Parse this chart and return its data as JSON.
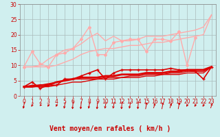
{
  "title": "",
  "xlabel": "Vent moyen/en rafales ( km/h )",
  "xlabel_color": "#cc0000",
  "background_color": "#d0efef",
  "grid_color": "#aabbbb",
  "xlim": [
    -0.5,
    23.5
  ],
  "ylim": [
    0,
    30
  ],
  "xticks": [
    0,
    1,
    2,
    3,
    4,
    5,
    6,
    7,
    8,
    9,
    10,
    11,
    12,
    13,
    14,
    15,
    16,
    17,
    18,
    19,
    20,
    21,
    22,
    23
  ],
  "yticks": [
    0,
    5,
    10,
    15,
    20,
    25,
    30
  ],
  "lines": [
    {
      "x": [
        0,
        1,
        2,
        3,
        4,
        5,
        6,
        7,
        8,
        9,
        10,
        11,
        12,
        13,
        14,
        15,
        16,
        17,
        18,
        19,
        20,
        21
      ],
      "y": [
        9.5,
        14.5,
        10.5,
        9.5,
        13.5,
        14.0,
        15.5,
        18.5,
        22.5,
        13.5,
        13.5,
        17.5,
        18.0,
        18.5,
        18.5,
        14.5,
        18.5,
        18.5,
        18.0,
        21.0,
        10.0,
        19.0
      ],
      "color": "#ffaaaa",
      "lw": 1.0,
      "marker": "D",
      "markersize": 2.0,
      "zorder": 2
    },
    {
      "x": [
        0,
        1,
        2,
        3,
        4,
        5,
        6,
        7,
        8,
        9,
        10,
        11,
        12,
        13,
        14,
        15,
        16,
        17,
        18,
        19,
        20,
        21,
        22,
        23
      ],
      "y": [
        9.5,
        9.5,
        10.0,
        12.0,
        13.5,
        15.0,
        15.5,
        17.0,
        19.0,
        20.5,
        18.0,
        19.5,
        18.0,
        18.0,
        18.5,
        19.5,
        19.5,
        19.5,
        20.0,
        20.5,
        21.0,
        21.5,
        22.5,
        26.5
      ],
      "color": "#ffaaaa",
      "lw": 1.0,
      "marker": null,
      "markersize": 0,
      "zorder": 2
    },
    {
      "x": [
        0,
        1,
        2,
        3,
        4,
        5,
        6,
        7,
        8,
        9,
        10,
        11,
        12,
        13,
        14,
        15,
        16,
        17,
        18,
        19,
        20,
        21,
        22,
        23
      ],
      "y": [
        9.5,
        9.5,
        9.5,
        9.5,
        10.0,
        11.0,
        12.0,
        13.5,
        14.5,
        15.0,
        15.5,
        15.5,
        16.0,
        16.5,
        16.5,
        17.0,
        17.5,
        17.5,
        18.0,
        18.5,
        19.0,
        19.5,
        20.0,
        26.5
      ],
      "color": "#ffaaaa",
      "lw": 1.0,
      "marker": null,
      "markersize": 0,
      "zorder": 2
    },
    {
      "x": [
        0,
        1,
        2,
        3,
        4,
        5,
        6,
        7,
        8,
        9,
        10,
        11,
        12,
        13,
        14,
        15,
        16,
        17,
        18,
        19,
        20,
        21,
        22,
        23
      ],
      "y": [
        3.0,
        4.5,
        2.5,
        3.5,
        3.5,
        5.5,
        5.5,
        6.5,
        7.5,
        8.5,
        5.5,
        7.5,
        8.5,
        8.5,
        8.5,
        8.5,
        8.5,
        8.5,
        9.0,
        8.5,
        8.5,
        8.0,
        5.5,
        9.5
      ],
      "color": "#dd0000",
      "lw": 1.2,
      "marker": "+",
      "markersize": 3.5,
      "zorder": 3
    },
    {
      "x": [
        0,
        1,
        2,
        3,
        4,
        5,
        6,
        7,
        8,
        9,
        10,
        11,
        12,
        13,
        14,
        15,
        16,
        17,
        18,
        19,
        20,
        21,
        22,
        23
      ],
      "y": [
        3.0,
        3.0,
        3.5,
        3.5,
        4.5,
        5.0,
        5.5,
        6.0,
        6.0,
        6.0,
        6.5,
        6.5,
        7.0,
        7.0,
        7.0,
        7.5,
        7.5,
        7.5,
        8.0,
        8.0,
        8.5,
        8.5,
        8.5,
        9.5
      ],
      "color": "#dd0000",
      "lw": 2.0,
      "marker": null,
      "markersize": 0,
      "zorder": 3
    },
    {
      "x": [
        0,
        1,
        2,
        3,
        4,
        5,
        6,
        7,
        8,
        9,
        10,
        11,
        12,
        13,
        14,
        15,
        16,
        17,
        18,
        19,
        20,
        21,
        22,
        23
      ],
      "y": [
        3.0,
        3.5,
        3.5,
        4.0,
        4.5,
        5.0,
        5.5,
        5.5,
        5.5,
        5.5,
        6.0,
        6.0,
        6.0,
        6.5,
        6.5,
        7.0,
        7.0,
        7.0,
        7.5,
        7.5,
        8.0,
        8.0,
        8.0,
        9.5
      ],
      "color": "#dd0000",
      "lw": 1.0,
      "marker": null,
      "markersize": 0,
      "zorder": 3
    },
    {
      "x": [
        0,
        1,
        2,
        3,
        4,
        5,
        6,
        7,
        8,
        9,
        10,
        11,
        12,
        13,
        14,
        15,
        16,
        17,
        18,
        19,
        20,
        21,
        22,
        23
      ],
      "y": [
        3.0,
        3.0,
        3.0,
        3.0,
        3.5,
        4.0,
        4.5,
        4.5,
        5.0,
        5.5,
        5.5,
        5.5,
        6.0,
        6.0,
        6.0,
        6.5,
        6.5,
        7.0,
        7.0,
        7.0,
        7.5,
        7.5,
        7.5,
        9.5
      ],
      "color": "#dd0000",
      "lw": 1.0,
      "marker": null,
      "markersize": 0,
      "zorder": 3
    }
  ],
  "tick_fontsize": 5.5,
  "label_fontsize": 7,
  "wind_angles": [
    210,
    240,
    250,
    240,
    240,
    210,
    195,
    195,
    210,
    195,
    210,
    210,
    195,
    210,
    195,
    30,
    45,
    30,
    45,
    30,
    240,
    240,
    240,
    45
  ]
}
